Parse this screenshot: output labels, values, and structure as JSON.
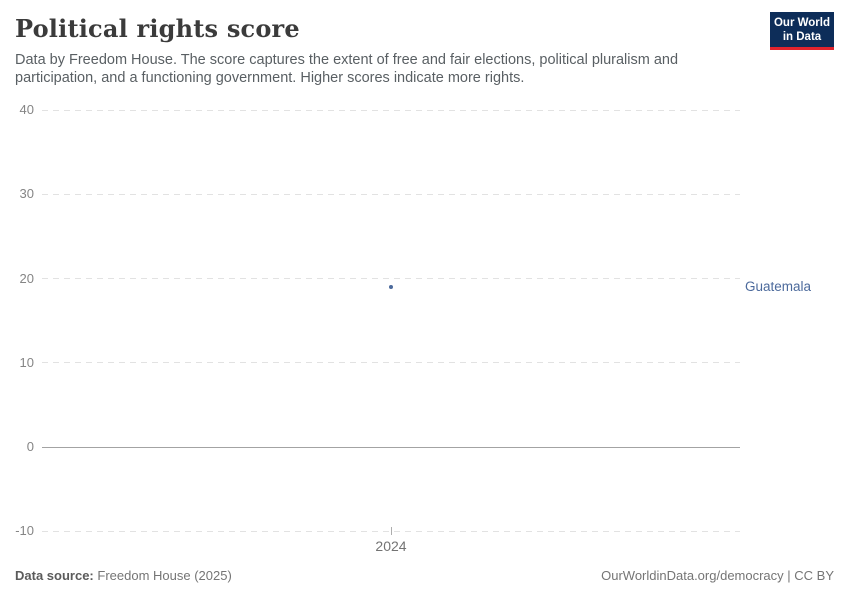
{
  "header": {
    "title": "Political rights score",
    "subtitle": "Data by Freedom House. The score captures the extent of free and fair elections, political pluralism and participation, and a functioning government. Higher scores indicate more rights.",
    "logo": {
      "line1": "Our World",
      "line2": "in Data"
    }
  },
  "chart_data": {
    "type": "scatter",
    "title": "Political rights score",
    "x": [
      2024
    ],
    "x_tick_labels": [
      "2024"
    ],
    "series": [
      {
        "name": "Guatemala",
        "color": "#4C6A9C",
        "values": [
          19
        ]
      }
    ],
    "xlabel": "",
    "ylabel": "",
    "ylim": [
      -10,
      40
    ],
    "y_ticks": [
      -10,
      0,
      10,
      20,
      30,
      40
    ],
    "grid": "horizontal-dashed",
    "legend": "entity-label-right"
  },
  "colors": {
    "accent": "#4C6A9C",
    "logo_bg": "#0d2d59",
    "logo_red": "#e0232d",
    "gridline": "#e2e2e2",
    "zero_line": "#a3a3a3"
  },
  "footer": {
    "source_label": "Data source:",
    "source_value": "Freedom House (2025)",
    "right_text": "OurWorldinData.org/democracy | CC BY"
  }
}
